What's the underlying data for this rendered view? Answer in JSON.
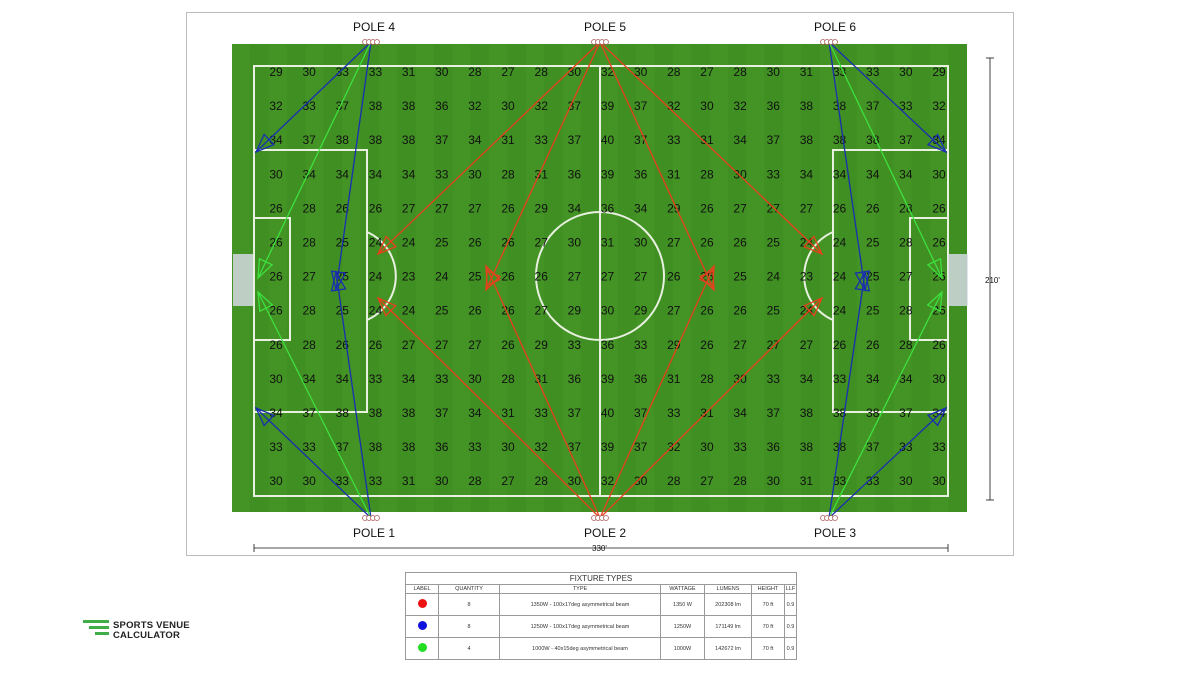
{
  "poles": [
    {
      "label": "POLE 1",
      "pos": "bottom-left"
    },
    {
      "label": "POLE 2",
      "pos": "bottom-center"
    },
    {
      "label": "POLE 3",
      "pos": "bottom-right"
    },
    {
      "label": "POLE 4",
      "pos": "top-left"
    },
    {
      "label": "POLE 5",
      "pos": "top-center"
    },
    {
      "label": "POLE 6",
      "pos": "top-right"
    }
  ],
  "dimensions": {
    "width": "330'",
    "height": "210'"
  },
  "grid": [
    [
      29,
      30,
      33,
      33,
      31,
      30,
      28,
      27,
      28,
      30,
      32,
      30,
      28,
      27,
      28,
      30,
      31,
      33,
      33,
      30,
      29
    ],
    [
      32,
      33,
      37,
      38,
      38,
      36,
      32,
      30,
      32,
      37,
      39,
      37,
      32,
      30,
      32,
      36,
      38,
      38,
      37,
      33,
      32
    ],
    [
      34,
      37,
      38,
      38,
      38,
      37,
      34,
      31,
      33,
      37,
      40,
      37,
      33,
      31,
      34,
      37,
      38,
      38,
      38,
      37,
      34
    ],
    [
      30,
      34,
      34,
      34,
      34,
      33,
      30,
      28,
      31,
      36,
      39,
      36,
      31,
      28,
      30,
      33,
      34,
      34,
      34,
      34,
      30
    ],
    [
      26,
      28,
      26,
      26,
      27,
      27,
      27,
      26,
      29,
      34,
      36,
      34,
      29,
      26,
      27,
      27,
      27,
      26,
      26,
      28,
      26
    ],
    [
      26,
      28,
      25,
      24,
      24,
      25,
      26,
      26,
      27,
      30,
      31,
      30,
      27,
      26,
      26,
      25,
      24,
      24,
      25,
      28,
      26
    ],
    [
      26,
      27,
      25,
      24,
      23,
      24,
      25,
      26,
      26,
      27,
      27,
      27,
      26,
      26,
      25,
      24,
      23,
      24,
      25,
      27,
      26
    ],
    [
      26,
      28,
      25,
      24,
      24,
      25,
      26,
      26,
      27,
      29,
      30,
      29,
      27,
      26,
      26,
      25,
      24,
      24,
      25,
      28,
      26
    ],
    [
      26,
      28,
      26,
      26,
      27,
      27,
      27,
      26,
      29,
      33,
      36,
      33,
      29,
      26,
      27,
      27,
      27,
      26,
      26,
      28,
      26
    ],
    [
      30,
      34,
      34,
      33,
      34,
      33,
      30,
      28,
      31,
      36,
      39,
      36,
      31,
      28,
      30,
      33,
      34,
      33,
      34,
      34,
      30
    ],
    [
      34,
      37,
      38,
      38,
      38,
      37,
      34,
      31,
      33,
      37,
      40,
      37,
      33,
      31,
      34,
      37,
      38,
      38,
      38,
      37,
      34
    ],
    [
      33,
      33,
      37,
      38,
      38,
      36,
      33,
      30,
      32,
      37,
      39,
      37,
      32,
      30,
      33,
      36,
      38,
      38,
      37,
      33,
      33
    ],
    [
      30,
      30,
      33,
      33,
      31,
      30,
      28,
      27,
      28,
      30,
      32,
      30,
      28,
      27,
      28,
      30,
      31,
      33,
      33,
      30,
      30
    ]
  ],
  "colors": {
    "red": "#e8401c",
    "blue": "#1a2fb0",
    "green": "#3ee03e",
    "grass": "#3f8f22",
    "logo": "#3fae49"
  },
  "fixtures": {
    "title": "FIXTURE TYPES",
    "headers": [
      "LABEL",
      "QUANTITY",
      "TYPE",
      "WATTAGE",
      "LUMENS",
      "HEIGHT",
      "LLF"
    ],
    "rows": [
      {
        "color": "#ee1111",
        "quantity": "8",
        "type": "1350W - 100x17deg asymmetrical beam",
        "wattage": "1350 W",
        "lumens": "202308 lm",
        "height": "70 ft",
        "llf": "0.9"
      },
      {
        "color": "#1111dd",
        "quantity": "8",
        "type": "1250W - 100x17deg asymmetrical beam",
        "wattage": "1250W",
        "lumens": "171149 lm",
        "height": "70 ft",
        "llf": "0.9"
      },
      {
        "color": "#22dd22",
        "quantity": "4",
        "type": "1000W - 40x15deg asymmetrical beam",
        "wattage": "1000W",
        "lumens": "142672 lm",
        "height": "70 ft",
        "llf": "0.9"
      }
    ]
  },
  "logo": {
    "line1": "SPORTS VENUE",
    "line2": "CALCULATOR"
  }
}
